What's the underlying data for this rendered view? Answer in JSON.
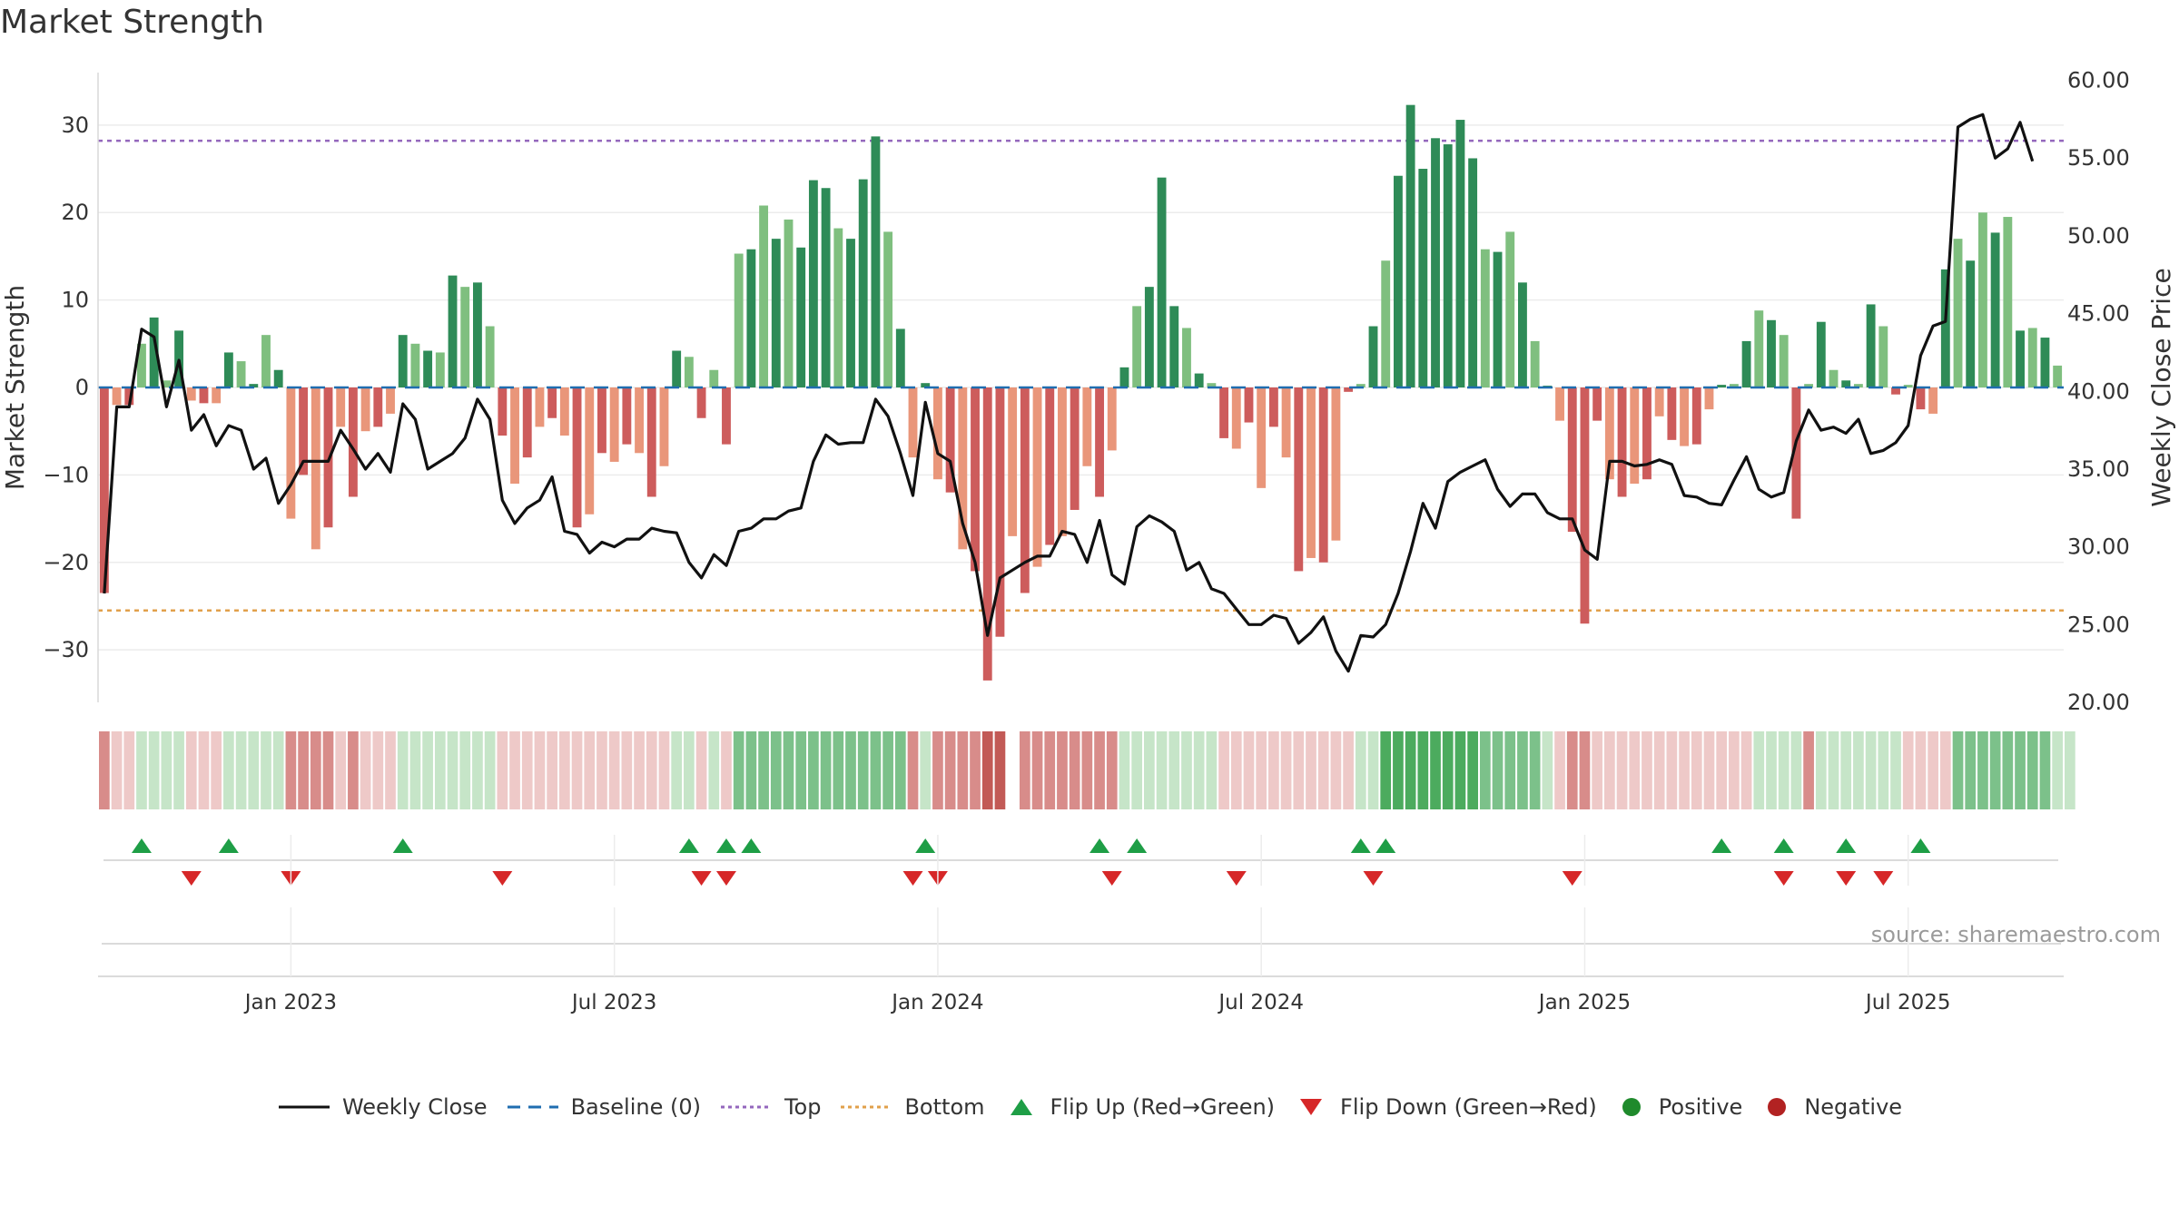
{
  "title": "Market Strength",
  "source": "source: sharemaestro.com",
  "colors": {
    "pos_strong": "#2e8b57",
    "pos_weak": "#7fbf7f",
    "neg_strong": "#cd5c5c",
    "neg_weak": "#e9967a",
    "line": "#111111",
    "top": "#9467bd",
    "bottom": "#e1a04b",
    "baseline": "#1f6db0",
    "flip_up": "#1e9e46",
    "flip_down": "#d62728",
    "positive": "#1f8a2c",
    "negative": "#b22222"
  },
  "chart_data": {
    "type": "bar+line",
    "title": "Market Strength",
    "ylabel_left": "Market Strength",
    "ylabel_right": "Weekly Close Price",
    "ylim_left": [
      -36,
      36
    ],
    "ylim_right": [
      20,
      60.5
    ],
    "left_ticks": [
      30,
      20,
      10,
      0,
      -10,
      -20,
      -30
    ],
    "left_tick_labels": [
      "30",
      "20",
      "10",
      "0",
      "−10",
      "−20",
      "−30"
    ],
    "right_ticks": [
      60,
      55,
      50,
      45,
      40,
      35,
      30,
      25,
      20
    ],
    "right_tick_labels": [
      "60.00",
      "55.00",
      "50.00",
      "45.00",
      "40.00",
      "35.00",
      "30.00",
      "25.00",
      "20.00"
    ],
    "top_level": 28.2,
    "bottom_level": -25.5,
    "x_tick_labels": [
      "Jan 2023",
      "Jul 2023",
      "Jan 2024",
      "Jul 2024",
      "Jan 2025",
      "Jul 2025"
    ],
    "x_tick_weeks": [
      15,
      41,
      67,
      93,
      119,
      145
    ],
    "strength": [
      -23.5,
      -2,
      -2,
      5,
      8,
      0.8,
      6.5,
      -1.5,
      -1.8,
      -1.8,
      4,
      3,
      0.4,
      6,
      2,
      -15,
      -10,
      -18.5,
      -16,
      -4.5,
      -12.5,
      -5,
      -4.5,
      -3,
      6,
      5,
      4.2,
      4,
      12.8,
      11.5,
      12,
      7,
      -5.5,
      -11,
      -8,
      -4.5,
      -3.5,
      -5.5,
      -16,
      -14.5,
      -7.5,
      -8.5,
      -6.5,
      -7.5,
      -12.5,
      -9,
      4.2,
      3.5,
      -3.5,
      2,
      -6.5,
      15.3,
      15.8,
      20.8,
      17,
      19.2,
      16,
      23.7,
      22.8,
      18.2,
      17,
      23.8,
      28.7,
      17.8,
      6.7,
      -8,
      0.5,
      -10.5,
      -12,
      -18.5,
      -21,
      -33.5,
      -28.5,
      -17,
      -23.5,
      -20.5,
      -18,
      -17,
      -14,
      -9,
      -12.5,
      -7.2,
      2.3,
      9.3,
      11.5,
      24,
      9.3,
      6.8,
      1.6,
      0.5,
      -5.8,
      -7,
      -4,
      -11.5,
      -4.5,
      -8,
      -21,
      -19.5,
      -20,
      -17.5,
      -0.5,
      0.4,
      7,
      14.5,
      24.2,
      32.3,
      25,
      28.5,
      27.8,
      30.6,
      26.2,
      15.8,
      15.5,
      17.8,
      12,
      5.3,
      0.2,
      -3.8,
      -16.5,
      -27,
      -3.8,
      -10.5,
      -12.5,
      -11,
      -10.5,
      -3.3,
      -6,
      -6.7,
      -6.5,
      -2.5,
      0.3,
      0.4,
      5.3,
      8.8,
      7.7,
      6,
      -15,
      0.4,
      7.5,
      2,
      0.8,
      0.4,
      9.5,
      7,
      -0.8,
      0.3,
      -2.5,
      -3,
      13.5,
      17,
      14.5,
      20,
      17.7,
      19.5,
      6.5,
      6.8,
      5.7,
      2.5
    ],
    "close": [
      27,
      39,
      39,
      44,
      43.5,
      39,
      42,
      37.5,
      38.5,
      36.5,
      37.8,
      37.5,
      35,
      35.7,
      32.8,
      34,
      35.5,
      35.5,
      35.5,
      37.5,
      36.3,
      35,
      36,
      34.8,
      39.2,
      38.2,
      35,
      35.5,
      36,
      37,
      39.5,
      38.2,
      33,
      31.5,
      32.5,
      33,
      34.5,
      31,
      30.8,
      29.6,
      30.3,
      30,
      30.5,
      30.5,
      31.2,
      31,
      30.9,
      29,
      28,
      29.5,
      28.8,
      31,
      31.2,
      31.8,
      31.8,
      32.3,
      32.5,
      35.5,
      37.2,
      36.6,
      36.7,
      36.7,
      39.5,
      38.4,
      36,
      33.3,
      39.3,
      36,
      35.5,
      31.5,
      29,
      24.3,
      28,
      28.5,
      29,
      29.4,
      29.4,
      31,
      30.8,
      29,
      31.7,
      28.2,
      27.6,
      31.3,
      32,
      31.6,
      31,
      28.5,
      29,
      27.3,
      27,
      26,
      25,
      25,
      25.6,
      25.4,
      23.8,
      24.5,
      25.5,
      23.3,
      22,
      24.3,
      24.2,
      25,
      27,
      29.7,
      32.8,
      31.2,
      34.2,
      34.8,
      35.2,
      35.6,
      33.7,
      32.6,
      33.4,
      33.4,
      32.2,
      31.8,
      31.8,
      29.8,
      29.2,
      35.5,
      35.5,
      35.2,
      35.3,
      35.6,
      35.3,
      33.3,
      33.2,
      32.8,
      32.7,
      34.3,
      35.8,
      33.7,
      33.2,
      33.5,
      36.8,
      38.8,
      37.5,
      37.7,
      37.3,
      38.2,
      36,
      36.2,
      36.7,
      37.8,
      42.3,
      44.2,
      44.5,
      57,
      57.5,
      57.8,
      55,
      55.6,
      57.3,
      54.8
    ],
    "top_strip_levels": [
      -2,
      -1,
      -1,
      1,
      1,
      1,
      1,
      -1,
      -1,
      -1,
      1,
      1,
      1,
      1,
      1,
      -2,
      -2,
      -2,
      -2,
      -1,
      -2,
      -1,
      -1,
      -1,
      1,
      1,
      1,
      1,
      1,
      1,
      1,
      1,
      -1,
      -1,
      -1,
      -1,
      -1,
      -1,
      -1,
      -1,
      -1,
      -1,
      -1,
      -1,
      -1,
      -1,
      1,
      1,
      -1,
      1,
      -1,
      2,
      2,
      2,
      2,
      2,
      2,
      2,
      2,
      2,
      2,
      2,
      2,
      2,
      2,
      -2,
      1,
      -2,
      -2,
      -2,
      -2,
      -3,
      -3,
      0,
      -2,
      -2,
      -2,
      -2,
      -2,
      -2,
      -2,
      -2,
      1,
      1,
      1,
      1,
      1,
      1,
      1,
      1,
      -1,
      -1,
      -1,
      -1,
      -1,
      -1,
      -1,
      -1,
      -1,
      -1,
      -1,
      1,
      1,
      3,
      3,
      3,
      3,
      3,
      3,
      3,
      3,
      2,
      2,
      2,
      2,
      2,
      1,
      -1,
      -2,
      -2,
      -1,
      -1,
      -1,
      -1,
      -1,
      -1,
      -1,
      -1,
      -1,
      -1,
      -1,
      -1,
      -1,
      1,
      1,
      1,
      1,
      -2,
      1,
      1,
      1,
      1,
      1,
      1,
      1,
      -1,
      -1,
      -1,
      -1,
      2,
      2,
      2,
      2,
      2,
      2,
      2,
      2,
      1,
      1
    ],
    "flip_up_weeks": [
      3,
      10,
      24,
      47,
      50,
      52,
      66,
      80,
      83,
      101,
      103,
      130,
      135,
      140,
      146
    ],
    "flip_down_weeks": [
      7,
      15,
      32,
      48,
      50,
      65,
      67,
      81,
      91,
      102,
      118,
      135,
      140,
      143
    ],
    "legend": [
      "Weekly Close",
      "Baseline (0)",
      "Top",
      "Bottom",
      "Flip Up (Red→Green)",
      "Flip Down (Green→Red)",
      "Positive",
      "Negative"
    ]
  }
}
